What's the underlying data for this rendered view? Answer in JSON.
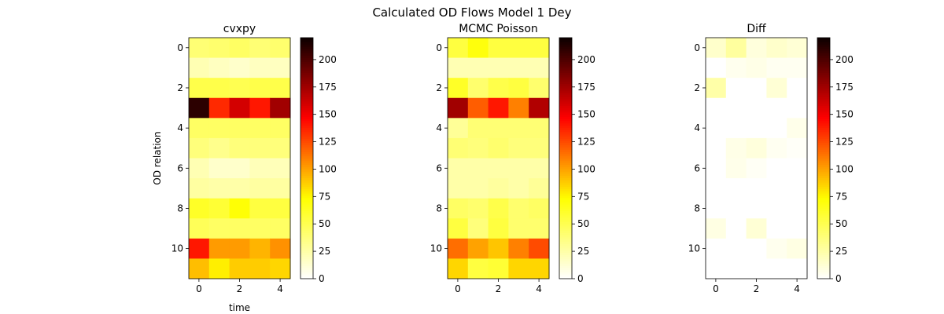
{
  "figure": {
    "suptitle": "Calculated OD Flows Model 1 Dey"
  },
  "colormap": {
    "name": "hot_r",
    "stops": [
      "#ffffff",
      "#ffff00",
      "#ff0000",
      "#0b0000"
    ]
  },
  "chart_data": [
    {
      "type": "heatmap",
      "title": "cvxpy",
      "xlabel": "time",
      "ylabel": "OD relation",
      "x_ticks": [
        0,
        2,
        4
      ],
      "y_ticks": [
        0,
        2,
        4,
        6,
        8,
        10
      ],
      "colorbar_ticks": [
        0,
        25,
        50,
        75,
        100,
        125,
        150,
        175,
        200
      ],
      "vmin": 0,
      "vmax": 220,
      "values": [
        [
          40,
          42,
          45,
          40,
          42
        ],
        [
          22,
          18,
          15,
          18,
          18
        ],
        [
          52,
          52,
          50,
          52,
          52
        ],
        [
          210,
          135,
          160,
          140,
          175
        ],
        [
          45,
          45,
          45,
          45,
          45
        ],
        [
          38,
          33,
          38,
          38,
          38
        ],
        [
          22,
          15,
          15,
          20,
          20
        ],
        [
          27,
          25,
          25,
          27,
          27
        ],
        [
          62,
          58,
          72,
          55,
          55
        ],
        [
          48,
          45,
          45,
          45,
          45
        ],
        [
          140,
          102,
          102,
          95,
          105
        ],
        [
          92,
          78,
          88,
          88,
          85
        ]
      ]
    },
    {
      "type": "heatmap",
      "title": "MCMC Poisson",
      "xlabel": "",
      "ylabel": "",
      "x_ticks": [
        0,
        2,
        4
      ],
      "y_ticks": [
        0,
        2,
        4,
        6,
        8,
        10
      ],
      "colorbar_ticks": [
        0,
        25,
        50,
        75,
        100,
        125,
        150,
        175,
        200
      ],
      "vmin": 0,
      "vmax": 220,
      "values": [
        [
          55,
          70,
          55,
          55,
          55
        ],
        [
          22,
          22,
          22,
          22,
          22
        ],
        [
          62,
          42,
          52,
          55,
          42
        ],
        [
          175,
          120,
          140,
          110,
          170
        ],
        [
          30,
          40,
          40,
          40,
          40
        ],
        [
          40,
          38,
          42,
          38,
          38
        ],
        [
          25,
          25,
          25,
          25,
          25
        ],
        [
          25,
          25,
          28,
          25,
          30
        ],
        [
          45,
          42,
          52,
          42,
          45
        ],
        [
          55,
          38,
          55,
          42,
          42
        ],
        [
          115,
          100,
          90,
          110,
          125
        ],
        [
          85,
          55,
          58,
          85,
          85
        ]
      ]
    },
    {
      "type": "heatmap",
      "title": "Diff",
      "xlabel": "",
      "ylabel": "",
      "x_ticks": [
        0,
        2,
        4
      ],
      "y_ticks": [
        0,
        2,
        4,
        6,
        8,
        10
      ],
      "colorbar_ticks": [
        0,
        25,
        50,
        75,
        100,
        125,
        150,
        175,
        200
      ],
      "vmin": 0,
      "vmax": 220,
      "values": [
        [
          15,
          28,
          10,
          15,
          12
        ],
        [
          0,
          5,
          7,
          4,
          4
        ],
        [
          25,
          0,
          0,
          12,
          0
        ],
        [
          0,
          0,
          0,
          0,
          0
        ],
        [
          0,
          0,
          0,
          0,
          6
        ],
        [
          0,
          7,
          10,
          4,
          2
        ],
        [
          0,
          6,
          3,
          0,
          0
        ],
        [
          0,
          0,
          0,
          0,
          0
        ],
        [
          0,
          0,
          0,
          0,
          0
        ],
        [
          8,
          0,
          12,
          0,
          0
        ],
        [
          0,
          0,
          0,
          5,
          8
        ],
        [
          0,
          0,
          0,
          0,
          0
        ]
      ]
    }
  ]
}
